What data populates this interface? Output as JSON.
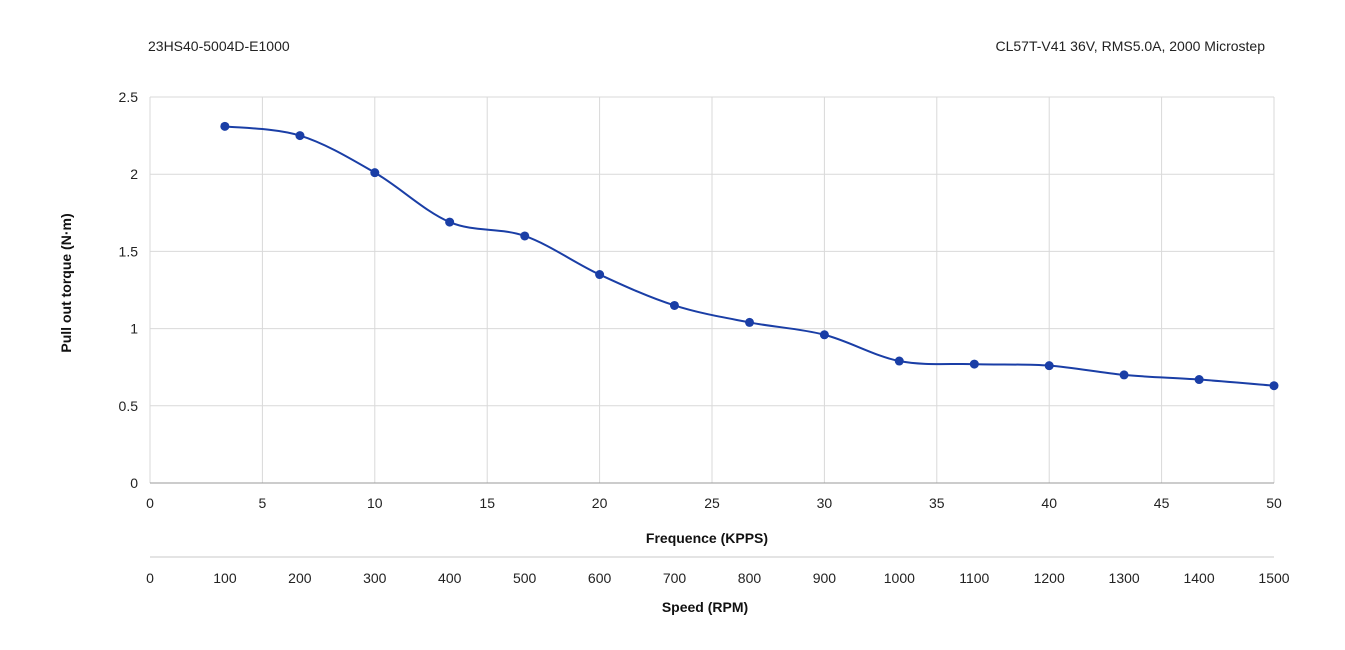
{
  "header": {
    "model": "23HS40-5004D-E1000",
    "driver_info": "CL57T-V41  36V,  RMS5.0A,  2000 Microstep"
  },
  "colors": {
    "series": "#1a3ea6",
    "grid": "#d9d9d9",
    "axis": "#c8c8c8"
  },
  "chart_data": {
    "type": "line",
    "title": "",
    "xlabel": "Frequence (KPPS)",
    "ylabel": "Pull out torque (N·m)",
    "xlim": [
      0,
      50
    ],
    "ylim": [
      0,
      2.5
    ],
    "x_ticks": [
      "0",
      "5",
      "10",
      "15",
      "20",
      "25",
      "30",
      "35",
      "40",
      "45",
      "50"
    ],
    "y_ticks": [
      "0",
      "0.5",
      "1",
      "1.5",
      "2",
      "2.5"
    ],
    "secondary_x": {
      "label": "Speed (RPM)",
      "ticks": [
        "0",
        "100",
        "200",
        "300",
        "400",
        "500",
        "600",
        "700",
        "800",
        "900",
        "1000",
        "1100",
        "1200",
        "1300",
        "1400",
        "1500"
      ]
    },
    "grid": true,
    "series": [
      {
        "x": [
          3.33,
          6.67,
          10,
          13.33,
          16.67,
          20,
          23.33,
          26.67,
          30,
          33.33,
          36.67,
          40,
          43.33,
          46.67,
          50
        ],
        "y": [
          2.31,
          2.25,
          2.01,
          1.69,
          1.6,
          1.35,
          1.15,
          1.04,
          0.96,
          0.79,
          0.77,
          0.76,
          0.7,
          0.67,
          0.63
        ]
      }
    ]
  }
}
